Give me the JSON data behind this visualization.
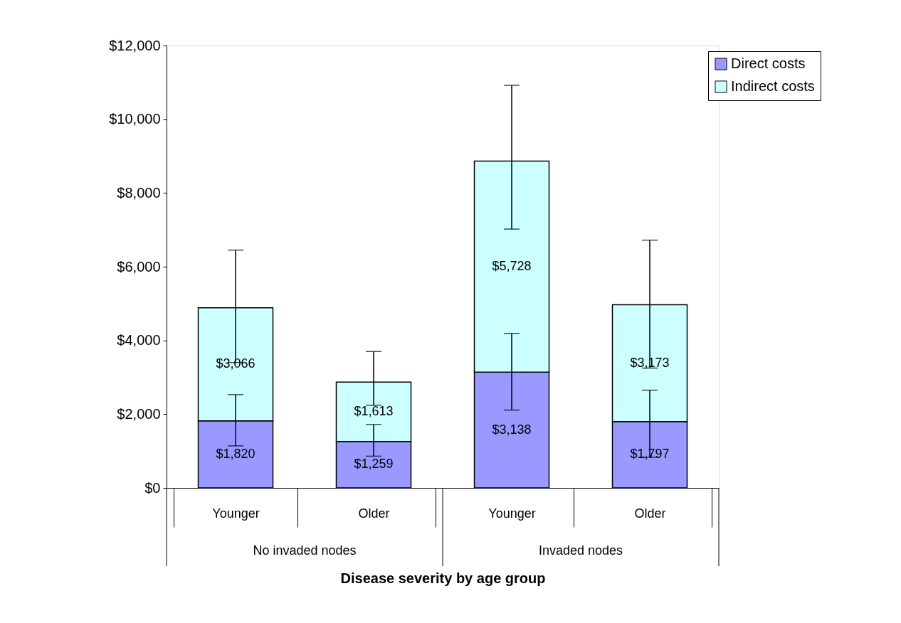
{
  "chart_data": {
    "type": "bar",
    "stacked": true,
    "xlabel": "Disease severity by age group",
    "categories": [
      "Younger",
      "Older",
      "Younger",
      "Older"
    ],
    "annotations": [
      "No invaded nodes",
      "Invaded nodes"
    ],
    "ylim": [
      0,
      12000
    ],
    "yticks": [
      {
        "value": 0,
        "label": "$0"
      },
      {
        "value": 2000,
        "label": "$2,000"
      },
      {
        "value": 4000,
        "label": "$4,000"
      },
      {
        "value": 6000,
        "label": "$6,000"
      },
      {
        "value": 8000,
        "label": "$8,000"
      },
      {
        "value": 10000,
        "label": "$10,000"
      },
      {
        "value": 12000,
        "label": "$12,000"
      }
    ],
    "grid": false,
    "legend": "top right",
    "series": [
      {
        "name": "Direct costs",
        "color": "#9999ff",
        "values": [
          1820,
          1259,
          3138,
          1797
        ],
        "value_labels": [
          "$1,820",
          "$1,259",
          "$3,138",
          "$1,797"
        ],
        "errors": [
          [
            1140,
            2530
          ],
          [
            860,
            1720
          ],
          [
            2110,
            4190
          ],
          [
            830,
            2650
          ]
        ]
      },
      {
        "name": "Indirect costs",
        "color": "#ccffff",
        "values": [
          3066,
          1613,
          5728,
          3173
        ],
        "value_labels": [
          "$3,066",
          "$1,613",
          "$5,728",
          "$3,173"
        ],
        "errors": [
          [
            3400,
            6450
          ],
          [
            2240,
            3700
          ],
          [
            7020,
            10920
          ],
          [
            3250,
            6720
          ]
        ]
      }
    ]
  }
}
